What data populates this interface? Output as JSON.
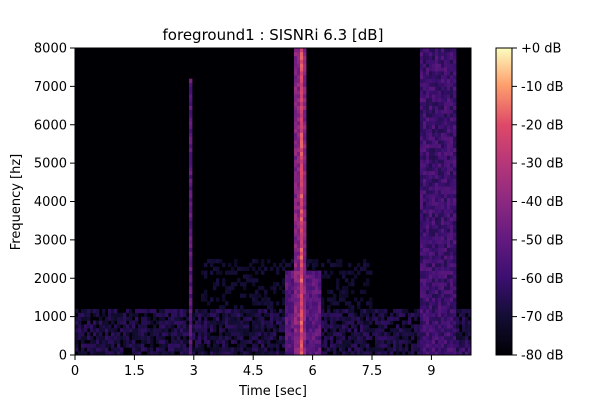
{
  "chart_data": {
    "type": "heatmap",
    "title": "foreground1 : SISNRi 6.3 [dB]",
    "xlabel": "Time [sec]",
    "ylabel": "Frequency [hz]",
    "xlim": [
      0,
      10
    ],
    "ylim": [
      0,
      8000
    ],
    "x_ticks": [
      0,
      1.5,
      3,
      4.5,
      6,
      7.5,
      9
    ],
    "x_tick_labels": [
      "0",
      "1.5",
      "3",
      "4.5",
      "6",
      "7.5",
      "9"
    ],
    "y_ticks": [
      0,
      1000,
      2000,
      3000,
      4000,
      5000,
      6000,
      7000,
      8000
    ],
    "y_tick_labels": [
      "0",
      "1000",
      "2000",
      "3000",
      "4000",
      "5000",
      "6000",
      "7000",
      "8000"
    ],
    "colorbar": {
      "range_db": [
        -80,
        0
      ],
      "ticks": [
        0,
        -10,
        -20,
        -30,
        -40,
        -50,
        -60,
        -70,
        -80
      ],
      "tick_labels": [
        "+0 dB",
        "-10 dB",
        "-20 dB",
        "-30 dB",
        "-40 dB",
        "-50 dB",
        "-60 dB",
        "-70 dB",
        "-80 dB"
      ],
      "colormap": "magma"
    },
    "features_db": [
      {
        "t_start": 5.55,
        "t_end": 5.85,
        "f_low": 0,
        "f_high": 8000,
        "level_db": -35
      },
      {
        "t_start": 5.65,
        "t_end": 5.78,
        "f_low": 0,
        "f_high": 8000,
        "level_db": -15
      },
      {
        "t_start": 2.85,
        "t_end": 2.92,
        "f_low": 0,
        "f_high": 7200,
        "level_db": -45
      },
      {
        "t_start": 8.7,
        "t_end": 9.6,
        "f_low": 0,
        "f_high": 8000,
        "level_db": -52
      },
      {
        "t_start": 0,
        "t_end": 10,
        "f_low": 0,
        "f_high": 1200,
        "level_db": -62
      },
      {
        "t_start": 5.3,
        "t_end": 6.2,
        "f_low": 0,
        "f_high": 2200,
        "level_db": -45
      },
      {
        "t_start": 3.2,
        "t_end": 7.5,
        "f_low": 1200,
        "f_high": 2500,
        "level_db": -68
      },
      {
        "t_start": 8.6,
        "t_end": 10,
        "f_low": 0,
        "f_high": 400,
        "level_db": -55
      }
    ]
  }
}
